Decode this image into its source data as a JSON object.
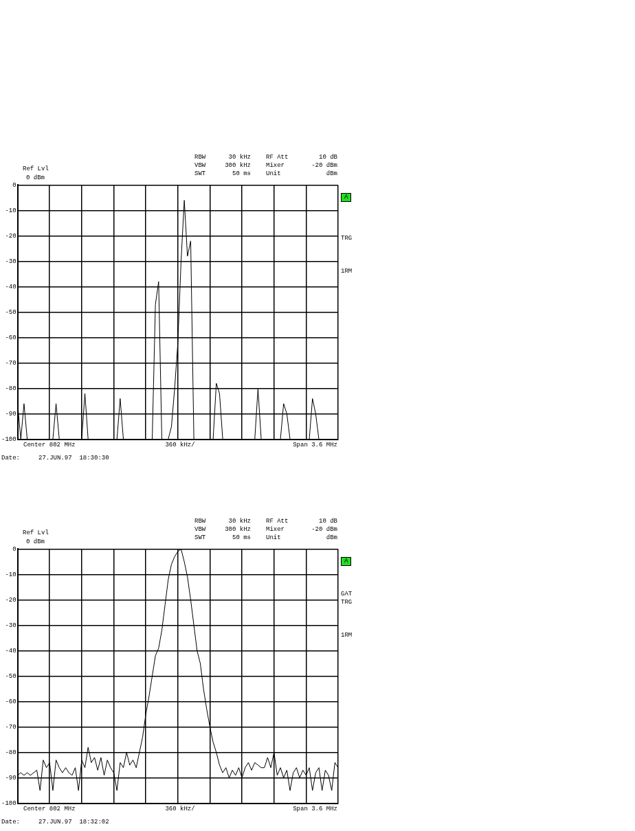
{
  "chart_data": [
    {
      "type": "line",
      "color": "#000000",
      "ylim": [
        -100,
        0
      ],
      "yticks": [
        0,
        -10,
        -20,
        -30,
        -40,
        -50,
        -60,
        -70,
        -80,
        -90,
        -100
      ],
      "grid": true,
      "legend": false,
      "categories": [
        null,
        null,
        null,
        null,
        null,
        null,
        null,
        null,
        null,
        null,
        null,
        null,
        null,
        null,
        null,
        null,
        null,
        null,
        null,
        null,
        null,
        null,
        null,
        null,
        null,
        null,
        null,
        null,
        null,
        null,
        null,
        null,
        null,
        null,
        null,
        null,
        null,
        null,
        null,
        null,
        null,
        null,
        null,
        null,
        null,
        null,
        null,
        null,
        null,
        null,
        null,
        null,
        null,
        null,
        null,
        null,
        null,
        null,
        null,
        null,
        null,
        null,
        null,
        null,
        null,
        null,
        null,
        null,
        null,
        null,
        null,
        null,
        null,
        null,
        null,
        null,
        null,
        null,
        null,
        null,
        null,
        null,
        null,
        null,
        null,
        null,
        null,
        null,
        null,
        null,
        null,
        null,
        null,
        null,
        null,
        null,
        null,
        null,
        null,
        null,
        null
      ],
      "values": [
        -86,
        -100,
        -86,
        -100,
        -100,
        -100,
        -100,
        -100,
        -100,
        -100,
        -100,
        -100,
        -86,
        -100,
        -100,
        -100,
        -100,
        -100,
        -100,
        -100,
        -100,
        -82,
        -100,
        -100,
        -100,
        -100,
        -100,
        -100,
        -100,
        -100,
        -100,
        -100,
        -84,
        -100,
        -100,
        -100,
        -100,
        -100,
        -100,
        -100,
        -100,
        -100,
        -100,
        -47,
        -38,
        -100,
        -100,
        -100,
        -95,
        -80,
        -62,
        -30,
        -6,
        -28,
        -22,
        -100,
        -100,
        -100,
        -100,
        -100,
        -100,
        -100,
        -78,
        -82,
        -100,
        -100,
        -100,
        -100,
        -100,
        -100,
        -100,
        -100,
        -100,
        -100,
        -100,
        -80,
        -100,
        -100,
        -100,
        -100,
        -100,
        -100,
        -100,
        -86,
        -90,
        -100,
        -100,
        -100,
        -100,
        -100,
        -100,
        -100,
        -84,
        -90,
        -100,
        -100,
        -100,
        -100,
        -100,
        -100,
        -100
      ],
      "annotations": [
        "Ref Lvl",
        "0 dBm",
        "RBW",
        "30 kHz",
        "VBW",
        "300 kHz",
        "SWT",
        "50 ms",
        "RF Att",
        "10 dB",
        "Mixer",
        "-20 dBm",
        "Unit",
        "dBm",
        "Center 802 MHz",
        "360 kHz/",
        "Span 3.6 MHz",
        "Date:     27.JUN.97  18:30:30",
        "A",
        "TRG",
        "1RM"
      ]
    },
    {
      "type": "line",
      "color": "#000000",
      "ylim": [
        -100,
        0
      ],
      "yticks": [
        0,
        -10,
        -20,
        -30,
        -40,
        -50,
        -60,
        -70,
        -80,
        -90,
        -100
      ],
      "grid": true,
      "legend": false,
      "categories": [
        null,
        null,
        null,
        null,
        null,
        null,
        null,
        null,
        null,
        null,
        null,
        null,
        null,
        null,
        null,
        null,
        null,
        null,
        null,
        null,
        null,
        null,
        null,
        null,
        null,
        null,
        null,
        null,
        null,
        null,
        null,
        null,
        null,
        null,
        null,
        null,
        null,
        null,
        null,
        null,
        null,
        null,
        null,
        null,
        null,
        null,
        null,
        null,
        null,
        null,
        null,
        null,
        null,
        null,
        null,
        null,
        null,
        null,
        null,
        null,
        null,
        null,
        null,
        null,
        null,
        null,
        null,
        null,
        null,
        null,
        null,
        null,
        null,
        null,
        null,
        null,
        null,
        null,
        null,
        null,
        null,
        null,
        null,
        null,
        null,
        null,
        null,
        null,
        null,
        null,
        null,
        null,
        null,
        null,
        null,
        null,
        null,
        null,
        null,
        null,
        null
      ],
      "values": [
        -89,
        -88,
        -89,
        -88,
        -89,
        -88,
        -87,
        -95,
        -83,
        -86,
        -84,
        -95,
        -83,
        -86,
        -88,
        -86,
        -88,
        -89,
        -86,
        -95,
        -83,
        -86,
        -78,
        -84,
        -82,
        -87,
        -82,
        -89,
        -83,
        -86,
        -88,
        -95,
        -84,
        -86,
        -80,
        -85,
        -83,
        -86,
        -80,
        -74,
        -65,
        -58,
        -50,
        -42,
        -39,
        -32,
        -22,
        -12,
        -6,
        -3,
        -1,
        0,
        -5,
        -11,
        -20,
        -30,
        -40,
        -45,
        -55,
        -63,
        -70,
        -76,
        -80,
        -85,
        -88,
        -86,
        -90,
        -87,
        -89,
        -86,
        -90,
        -86,
        -84,
        -87,
        -84,
        -85,
        -86,
        -86,
        -82,
        -86,
        -80,
        -89,
        -86,
        -90,
        -87,
        -95,
        -88,
        -86,
        -90,
        -87,
        -89,
        -86,
        -95,
        -88,
        -86,
        -95,
        -87,
        -89,
        -95,
        -84,
        -86
      ],
      "annotations": [
        "Ref Lvl",
        "0 dBm",
        "RBW",
        "30 kHz",
        "VBW",
        "300 kHz",
        "SWT",
        "50 ms",
        "RF Att",
        "10 dB",
        "Mixer",
        "-20 dBm",
        "Unit",
        "dBm",
        "Center 802 MHz",
        "360 kHz/",
        "Span 3.6 MHz",
        "Date:     27.JUN.97  18:32:02",
        "A",
        "GAT",
        "TRG",
        "1RM"
      ]
    }
  ]
}
